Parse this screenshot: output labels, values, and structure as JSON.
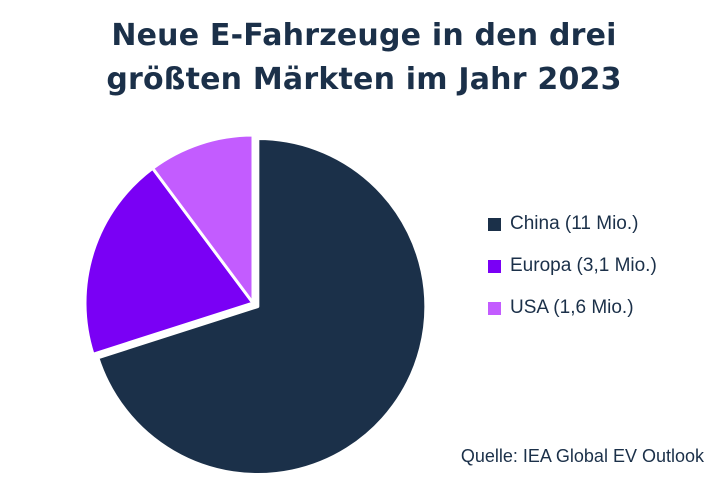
{
  "chart_data": {
    "type": "pie",
    "title_lines": [
      "Neue E-Fahrzeuge in den drei",
      "größten Märkten im Jahr 2023"
    ],
    "slices": [
      {
        "label": "China (11 Mio.)",
        "value": 11,
        "color": "#1b3049"
      },
      {
        "label": "Europa (3,1 Mio.)",
        "value": 3.1,
        "color": "#7a00f5"
      },
      {
        "label": "USA (1,6 Mio.)",
        "value": 1.6,
        "color": "#c35cff"
      }
    ],
    "legend_position": "right",
    "source": "Quelle: IEA Global EV Outlook"
  }
}
